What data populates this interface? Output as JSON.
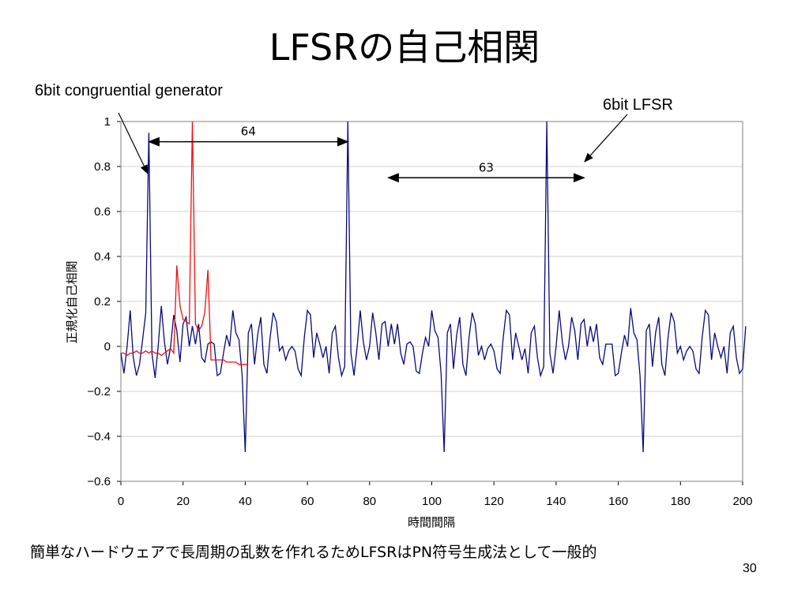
{
  "slide": {
    "title": "LFSRの自己相関",
    "footer": "簡単なハードウェアで長周期の乱数を作れるためLFSRはPN符号生成法として一般的",
    "page_number": "30"
  },
  "annotations": {
    "left": "6bit congruential generator",
    "right": "6bit LFSR"
  },
  "colors": {
    "lfsr": "#ee1111",
    "congruential": "#0a0a7a",
    "grid": "#d0d0d0"
  },
  "chart_data": {
    "type": "line",
    "xlabel": "時間間隔",
    "ylabel": "正規化自己相関",
    "xlim": [
      0,
      200
    ],
    "ylim": [
      -0.6,
      1
    ],
    "x_ticks": [
      "0",
      "20",
      "40",
      "60",
      "80",
      "100",
      "120",
      "140",
      "160",
      "180",
      "200"
    ],
    "y_ticks": [
      "1",
      "0.8",
      "0.6",
      "0.4",
      "0.2",
      "0",
      "−0.2",
      "−0.4",
      "−0.6"
    ],
    "grid": "horizontal",
    "dimension_markers": [
      {
        "label": "64",
        "x_from": 9,
        "x_to": 73,
        "y": 0.91
      },
      {
        "label": "63",
        "x_from": 86,
        "x_to": 149,
        "y": 0.75
      }
    ],
    "series": [
      {
        "name": "6bit congruential generator",
        "values": [
          -0.03,
          -0.12,
          0.0,
          0.16,
          -0.05,
          -0.13,
          -0.08,
          0.03,
          0.15,
          0.95,
          -0.03,
          -0.14,
          0.0,
          0.18,
          0.02,
          -0.08,
          0.0,
          0.14,
          0.07,
          -0.07,
          0.1,
          0.13,
          0.0,
          0.09,
          0.01,
          0.1,
          -0.05,
          -0.07,
          0.01,
          0.02,
          0.01,
          -0.13,
          -0.12,
          -0.03,
          0.05,
          0.0,
          0.16,
          0.06,
          0.03,
          -0.13,
          -0.47,
          0.06,
          0.1,
          -0.08,
          0.05,
          0.13,
          -0.08,
          -0.12,
          0.04,
          0.15,
          0.11,
          -0.02,
          0.0,
          -0.06,
          -0.02,
          0.0,
          -0.02,
          -0.1,
          -0.13,
          0.04,
          0.16,
          0.14,
          -0.05,
          0.06,
          0.01,
          -0.05,
          0.0,
          -0.12,
          0.06,
          0.09,
          -0.05,
          -0.13,
          -0.09,
          1.0,
          -0.03,
          -0.13,
          0.0,
          0.16,
          0.02,
          -0.06,
          0.0,
          0.15,
          0.06,
          -0.06,
          0.1,
          0.11,
          0.0,
          0.1,
          0.01,
          0.1,
          -0.03,
          -0.08,
          0.01,
          0.02,
          0.0,
          -0.11,
          -0.12,
          -0.03,
          0.04,
          0.0,
          0.16,
          0.07,
          0.04,
          -0.12,
          -0.47,
          0.06,
          0.1,
          -0.1,
          0.05,
          0.13,
          -0.08,
          -0.13,
          0.04,
          0.15,
          0.1,
          -0.04,
          0.0,
          -0.06,
          -0.01,
          0.01,
          -0.02,
          -0.1,
          -0.12,
          0.04,
          0.16,
          0.14,
          -0.06,
          0.06,
          0.0,
          -0.06,
          -0.01,
          -0.12,
          0.06,
          0.09,
          -0.05,
          -0.13,
          -0.09,
          1.0,
          -0.03,
          -0.12,
          0.0,
          0.16,
          0.02,
          -0.06,
          0.0,
          0.13,
          0.07,
          -0.06,
          0.1,
          0.12,
          0.0,
          0.09,
          0.02,
          0.1,
          -0.05,
          -0.08,
          0.01,
          0.01,
          0.01,
          -0.13,
          -0.12,
          -0.03,
          0.05,
          0.0,
          0.17,
          0.06,
          0.03,
          -0.13,
          -0.47,
          0.07,
          0.1,
          -0.09,
          0.06,
          0.13,
          -0.08,
          -0.13,
          0.04,
          0.15,
          0.11,
          -0.03,
          0.0,
          -0.06,
          -0.02,
          0.0,
          -0.02,
          -0.1,
          -0.12,
          0.04,
          0.16,
          0.14,
          -0.06,
          0.06,
          0.0,
          -0.05,
          0.0,
          -0.12,
          0.06,
          0.09,
          -0.05,
          -0.12,
          -0.1,
          0.09
        ]
      },
      {
        "name": "6bit LFSR",
        "values": [
          -0.03,
          -0.03,
          -0.04,
          -0.03,
          -0.03,
          -0.02,
          -0.03,
          -0.03,
          -0.02,
          -0.03,
          -0.02,
          -0.03,
          -0.03,
          -0.04,
          -0.03,
          -0.02,
          -0.01,
          -0.03,
          0.36,
          0.18,
          0.12,
          0.11,
          0.1,
          1.0,
          0.1,
          0.07,
          0.09,
          0.15,
          0.34,
          -0.06,
          -0.06,
          -0.06,
          -0.06,
          -0.06,
          -0.07,
          -0.07,
          -0.07,
          -0.07,
          -0.08,
          -0.08,
          -0.08,
          -0.08
        ]
      }
    ]
  }
}
